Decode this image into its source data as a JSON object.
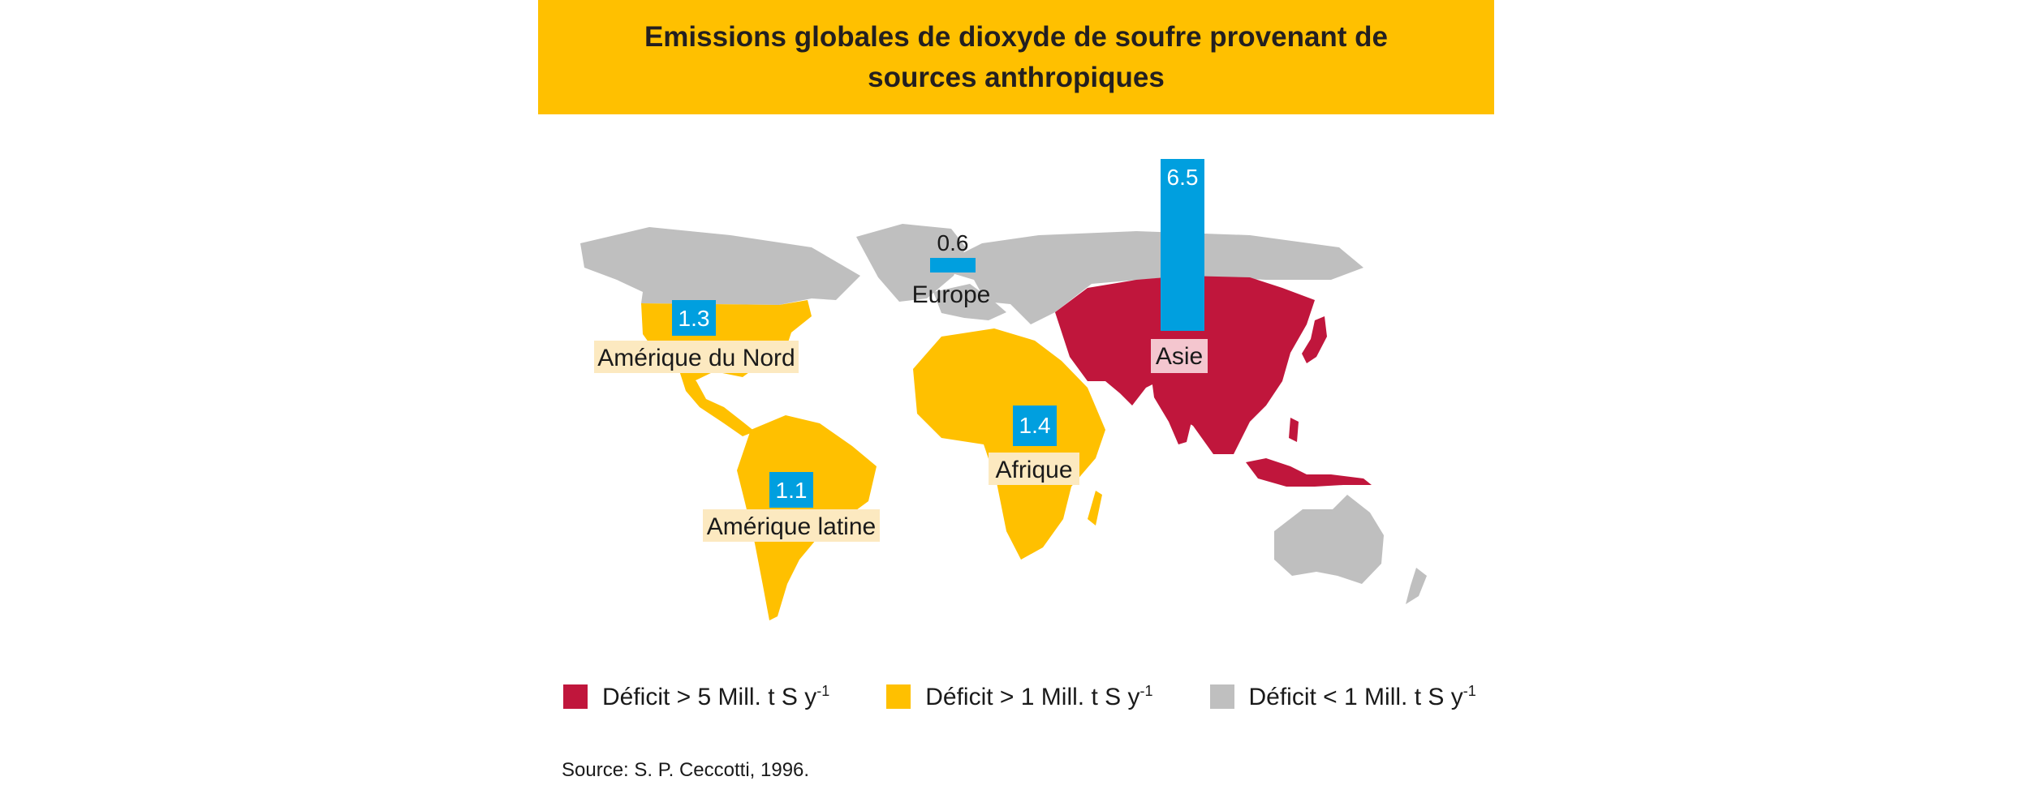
{
  "title": "Emissions globales de dioxyde de soufre provenant de sources anthropiques",
  "colors": {
    "high": "#C0163C",
    "medium": "#FFC000",
    "low": "#BFBFBF",
    "bar": "#009FDF",
    "label_bg": "#FCE9C0"
  },
  "regions": [
    {
      "key": "north_america",
      "name": "Amérique du Nord",
      "value": "1.3",
      "category": "medium"
    },
    {
      "key": "latin_america",
      "name": "Amérique latine",
      "value": "1.1",
      "category": "medium"
    },
    {
      "key": "europe",
      "name": "Europe",
      "value": "0.6",
      "category": "low"
    },
    {
      "key": "africa",
      "name": "Afrique",
      "value": "1.4",
      "category": "medium"
    },
    {
      "key": "asia",
      "name": "Asie",
      "value": "6.5",
      "category": "high"
    }
  ],
  "legend": [
    {
      "category": "high",
      "label": "Déficit > 5 Mill. t S y",
      "superscript": "-1"
    },
    {
      "category": "medium",
      "label": "Déficit > 1 Mill. t S y",
      "superscript": "-1"
    },
    {
      "category": "low",
      "label": "Déficit < 1 Mill. t S y",
      "superscript": "-1"
    }
  ],
  "source": "Source: S. P. Ceccotti, 1996."
}
